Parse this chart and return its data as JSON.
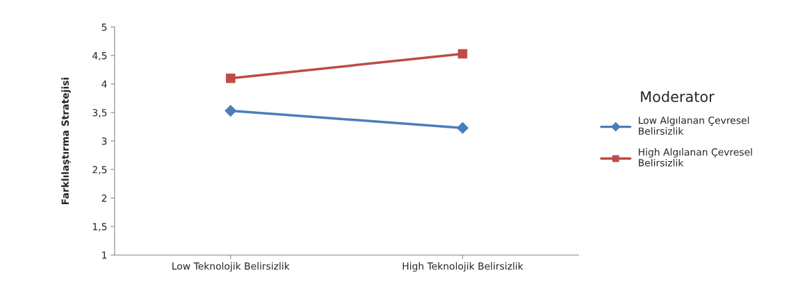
{
  "chart_data": {
    "type": "line",
    "ylabel": "Farklılaştırma Stratejisi",
    "legend_title": "Moderator",
    "legend": "right",
    "grid": false,
    "categories": [
      "Low Teknolojik Belirsizlik",
      "High Teknolojik Belirsizlik"
    ],
    "ylim": [
      1,
      5
    ],
    "yticks": [
      1,
      {
        "value": 1.5,
        "label": "1,5"
      },
      2,
      {
        "value": 2.5,
        "label": "2,5"
      },
      3,
      {
        "value": 3.5,
        "label": "3,5"
      },
      4,
      {
        "value": 4.5,
        "label": "4,5"
      },
      5
    ],
    "series": [
      {
        "name": "Low Algılanan Çevresel Belirsizlik",
        "color": "#4a7ebb",
        "marker": "diamond",
        "values": [
          3.53,
          3.23
        ]
      },
      {
        "name": "High Algılanan Çevresel Belirsizlik",
        "color": "#be4b48",
        "marker": "square",
        "values": [
          4.1,
          4.53
        ]
      }
    ]
  }
}
